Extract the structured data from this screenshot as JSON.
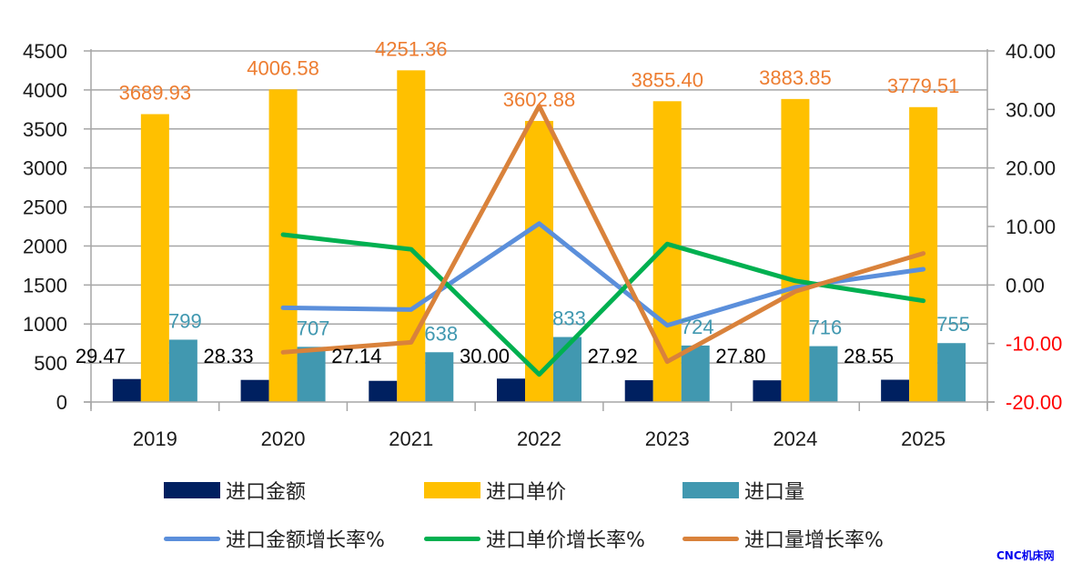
{
  "chart_data": {
    "type": "bar",
    "title": "",
    "categories": [
      "2019",
      "2020",
      "2021",
      "2022",
      "2023",
      "2024",
      "2025"
    ],
    "bar_series": [
      {
        "name": "进口金额",
        "values": [
          29.47,
          28.33,
          27.14,
          30.0,
          27.92,
          27.8,
          28.55
        ],
        "labels": [
          "29.47",
          "28.33",
          "27.14",
          "30.00",
          "27.92",
          "27.80",
          "28.55"
        ],
        "color": "#002060",
        "label_color": "#000000",
        "plot_scale": 10
      },
      {
        "name": "进口单价",
        "values": [
          3689.93,
          4006.58,
          4251.36,
          3602.88,
          3855.4,
          3883.85,
          3779.51
        ],
        "labels": [
          "3689.93",
          "4006.58",
          "4251.36",
          "3602.88",
          "3855.40",
          "3883.85",
          "3779.51"
        ],
        "color": "#FFC000",
        "label_color": "#ED7D31",
        "plot_scale": 1
      },
      {
        "name": "进口量",
        "values": [
          799,
          707,
          638,
          833,
          724,
          716,
          755
        ],
        "labels": [
          "799",
          "707",
          "638",
          "833",
          "724",
          "716",
          "755"
        ],
        "color": "#4198B0",
        "label_color": "#4198B0",
        "plot_scale": 1
      }
    ],
    "line_series": [
      {
        "name": "进口金额增长率%",
        "values": [
          null,
          -3.9,
          -4.2,
          10.5,
          -6.9,
          -0.4,
          2.7
        ],
        "color": "#5B8FDB"
      },
      {
        "name": "进口单价增长率%",
        "values": [
          null,
          8.6,
          6.1,
          -15.3,
          7.0,
          0.7,
          -2.7
        ],
        "color": "#00B050"
      },
      {
        "name": "进口量增长率%",
        "values": [
          null,
          -11.5,
          -9.8,
          30.6,
          -13.1,
          -1.1,
          5.4
        ],
        "color": "#D9823B"
      }
    ],
    "y_left": {
      "min": 0,
      "max": 4500,
      "step": 500,
      "ticks": [
        "0",
        "500",
        "1000",
        "1500",
        "2000",
        "2500",
        "3000",
        "3500",
        "4000",
        "4500"
      ]
    },
    "y_right": {
      "min": -20,
      "max": 40,
      "step": 10,
      "ticks": [
        "-20.00",
        "-10.00",
        "0.00",
        "10.00",
        "20.00",
        "30.00",
        "40.00"
      ],
      "negative_color": "#FF0000"
    },
    "grid": true,
    "legend_position": "bottom"
  },
  "legend": {
    "items": [
      {
        "label": "进口金额",
        "kind": "box",
        "color": "#002060"
      },
      {
        "label": "进口单价",
        "kind": "box",
        "color": "#FFC000"
      },
      {
        "label": "进口量",
        "kind": "box",
        "color": "#4198B0"
      },
      {
        "label": "进口金额增长率%",
        "kind": "line",
        "color": "#5B8FDB"
      },
      {
        "label": "进口单价增长率%",
        "kind": "line",
        "color": "#00B050"
      },
      {
        "label": "进口量增长率%",
        "kind": "line",
        "color": "#D9823B"
      }
    ]
  },
  "watermark": "CNC机床网"
}
